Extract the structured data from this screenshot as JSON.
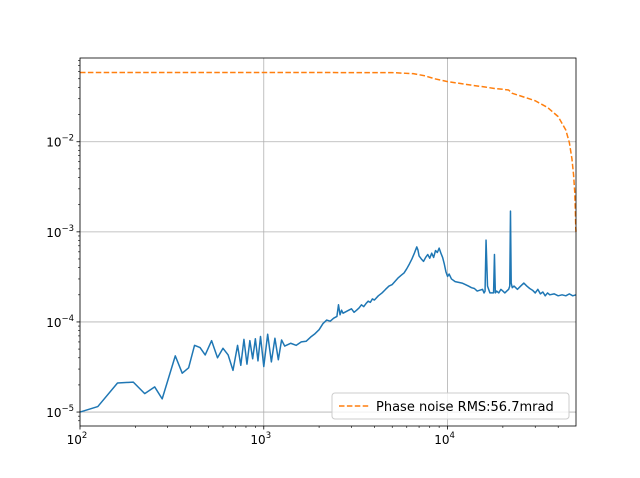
{
  "chart_data": {
    "type": "line",
    "title": "",
    "xlabel": "",
    "ylabel": "",
    "xscale": "log",
    "yscale": "log",
    "xlim": [
      100,
      50000
    ],
    "ylim": [
      7e-06,
      0.085
    ],
    "grid": true,
    "legend_location": "lower-right",
    "x_ticks": [
      {
        "value": 100,
        "base": "10",
        "exp": "2"
      },
      {
        "value": 1000,
        "base": "10",
        "exp": "3"
      },
      {
        "value": 10000,
        "base": "10",
        "exp": "4"
      }
    ],
    "y_ticks": [
      {
        "value": 1e-05,
        "base": "10",
        "exp": "−5"
      },
      {
        "value": 0.0001,
        "base": "10",
        "exp": "−4"
      },
      {
        "value": 0.001,
        "base": "10",
        "exp": "−3"
      },
      {
        "value": 0.01,
        "base": "10",
        "exp": "−2"
      }
    ],
    "series": [
      {
        "color": "#1f77b4",
        "style": "solid",
        "x": [
          100,
          125,
          160,
          195,
          225,
          255,
          280,
          330,
          360,
          390,
          420,
          450,
          480,
          520,
          560,
          600,
          640,
          680,
          720,
          750,
          780,
          810,
          840,
          870,
          900,
          930,
          960,
          1000,
          1050,
          1100,
          1150,
          1200,
          1250,
          1300,
          1400,
          1500,
          1600,
          1700,
          1800,
          1900,
          2000,
          2100,
          2200,
          2300,
          2400,
          2500,
          2550,
          2600,
          2650,
          2700,
          2800,
          2900,
          3000,
          3100,
          3200,
          3300,
          3400,
          3500,
          3600,
          3700,
          3800,
          3900,
          4000,
          4200,
          4400,
          4600,
          4800,
          5000,
          5200,
          5400,
          5600,
          5800,
          6000,
          6200,
          6400,
          6600,
          6800,
          6900,
          7000,
          7200,
          7400,
          7600,
          7800,
          8000,
          8200,
          8400,
          8600,
          8800,
          9000,
          9200,
          9400,
          9600,
          9800,
          10000,
          10200,
          10500,
          11000,
          11500,
          12000,
          12500,
          13000,
          13500,
          14000,
          14500,
          15000,
          15500,
          15800,
          16000,
          16200,
          16500,
          17000,
          17500,
          17800,
          18000,
          18200,
          18500,
          19000,
          19500,
          20000,
          20500,
          21000,
          21500,
          21800,
          22000,
          22200,
          22500,
          23000,
          24000,
          25000,
          26000,
          27000,
          28000,
          29000,
          30000,
          31000,
          32000,
          33000,
          34000,
          35000,
          36000,
          38000,
          40000,
          42000,
          44000,
          46000,
          48000,
          50000
        ],
        "y": [
          1e-05,
          1.15e-05,
          2.1e-05,
          2.15e-05,
          1.6e-05,
          1.9e-05,
          1.4e-05,
          4.2e-05,
          2.7e-05,
          3.1e-05,
          5.5e-05,
          5.2e-05,
          4.3e-05,
          6.2e-05,
          4e-05,
          5.1e-05,
          4.3e-05,
          2.9e-05,
          5.5e-05,
          3.3e-05,
          6.4e-05,
          3.4e-05,
          6.2e-05,
          3.9e-05,
          6.5e-05,
          3.7e-05,
          6.9e-05,
          3.2e-05,
          7.3e-05,
          3.6e-05,
          6.6e-05,
          3.8e-05,
          6.3e-05,
          5.4e-05,
          5.8e-05,
          5.5e-05,
          6e-05,
          6.1e-05,
          6.8e-05,
          7.4e-05,
          8.2e-05,
          9.6e-05,
          0.000105,
          0.000102,
          0.00011,
          0.000115,
          0.000155,
          0.00012,
          0.000135,
          0.000125,
          0.00013,
          0.000135,
          0.00014,
          0.000128,
          0.000135,
          0.000143,
          0.000155,
          0.000148,
          0.00016,
          0.00017,
          0.000165,
          0.00018,
          0.000175,
          0.000195,
          0.00021,
          0.00023,
          0.00025,
          0.00026,
          0.000285,
          0.00031,
          0.00033,
          0.00035,
          0.00039,
          0.00044,
          0.0005,
          0.00058,
          0.00068,
          0.00063,
          0.00054,
          0.0005,
          0.00047,
          0.00052,
          0.00056,
          0.00051,
          0.00058,
          0.00052,
          0.00062,
          0.00059,
          0.00066,
          0.00058,
          0.00052,
          0.00044,
          0.00036,
          0.00032,
          0.00034,
          0.0003,
          0.00028,
          0.000275,
          0.00027,
          0.00026,
          0.00025,
          0.00024,
          0.000235,
          0.00022,
          0.000225,
          0.00023,
          0.00021,
          0.00022,
          0.00081,
          0.00025,
          0.00021,
          0.00021,
          0.00021,
          0.00056,
          0.00021,
          0.00022,
          0.00021,
          0.00023,
          0.00022,
          0.00021,
          0.00022,
          0.00023,
          0.00025,
          0.0017,
          0.00027,
          0.00024,
          0.00025,
          0.00023,
          0.00025,
          0.00027,
          0.00025,
          0.000235,
          0.000225,
          0.00021,
          0.00023,
          0.000205,
          0.000215,
          0.000195,
          0.00021,
          0.0002,
          0.000205,
          0.000195,
          0.0002,
          0.000195,
          0.000205,
          0.000195,
          0.0002
        ]
      },
      {
        "name": "Phase noise RMS:56.7mrad",
        "color": "#ff7f0e",
        "style": "dashed",
        "x": [
          100,
          1000,
          5000,
          6500,
          7500,
          8500,
          10000,
          12000,
          14000,
          16000,
          18000,
          20000,
          21500,
          22500,
          25000,
          30000,
          35000,
          40000,
          44000,
          46000,
          47500,
          48500,
          49200,
          49600,
          49850,
          50000
        ],
        "y": [
          0.0587,
          0.0587,
          0.0585,
          0.057,
          0.054,
          0.05,
          0.0465,
          0.044,
          0.042,
          0.0405,
          0.039,
          0.0382,
          0.0375,
          0.0345,
          0.0322,
          0.0285,
          0.024,
          0.019,
          0.0135,
          0.0098,
          0.0065,
          0.0043,
          0.0028,
          0.0017,
          0.0011,
          0.001
        ]
      }
    ]
  }
}
